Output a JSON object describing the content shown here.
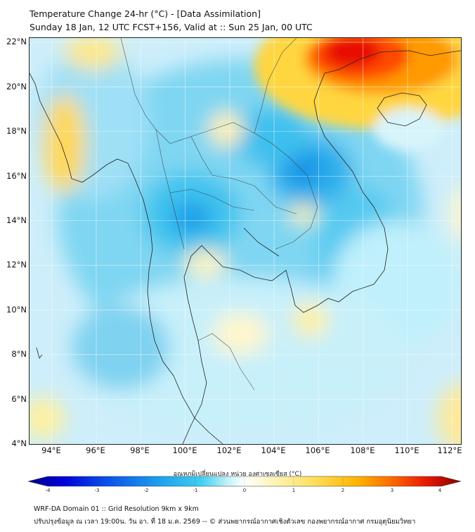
{
  "header": {
    "title_line1": "Temperature Change 24-hr (°C) - [Data Assimilation]",
    "title_line2": "Sunday 18 Jan, 12 UTC FCST+156, Valid at :: Sun 25 Jan, 00 UTC"
  },
  "map": {
    "lat_labels": [
      "22°N",
      "20°N",
      "18°N",
      "16°N",
      "14°N",
      "12°N",
      "10°N",
      "8°N",
      "6°N",
      "4°N"
    ],
    "lon_labels": [
      "94°E",
      "96°E",
      "98°E",
      "100°E",
      "102°E",
      "104°E",
      "106°E",
      "108°E",
      "110°E",
      "112°E"
    ],
    "lat_range": [
      4,
      22.2
    ],
    "lon_range": [
      93,
      112.4
    ],
    "grid": true
  },
  "colorbar": {
    "label": "อุณหภูมิเปลี่ยนแปลง หน่วย องศาเซลเซียส (°C)",
    "ticks": [
      "-4",
      "-3",
      "-2",
      "-1",
      "0",
      "1",
      "2",
      "3",
      "4"
    ],
    "range": [
      -4,
      4
    ],
    "colors": [
      "#00008a",
      "#0000d8",
      "#0a4fe8",
      "#1c9ef0",
      "#3fcff0",
      "#bff2fa",
      "#ffffff",
      "#fff6bf",
      "#ffe05a",
      "#ffb400",
      "#ff6a00",
      "#e81800",
      "#8a0000"
    ]
  },
  "footer": {
    "line1": "WRF-DA Domain 01 :: Grid Resolution 9km x 9km",
    "line2": "ปรับปรุงข้อมูล ณ เวลา 19:00น. วัน อา. ที่ 18 ม.ค. 2569 -- © ส่วนพยากรณ์อากาศเชิงตัวเลข กองพยากรณ์อากาศ กรมอุตุนิยมวิทยา"
  }
}
